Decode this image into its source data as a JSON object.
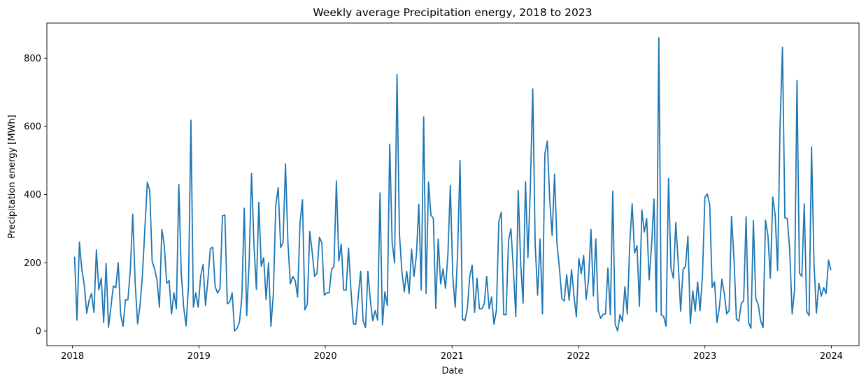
{
  "chart_data": {
    "type": "line",
    "title": "Weekly average Precipitation energy, 2018 to 2023",
    "xlabel": "Date",
    "ylabel": "Precipitation energy [MWh]",
    "xlim": [
      "2017-10-19",
      "2024-03-21"
    ],
    "ylim": [
      -43,
      903
    ],
    "grid": false,
    "color": "#1f77b4",
    "x_ticks": [
      "2018",
      "2019",
      "2020",
      "2021",
      "2022",
      "2023",
      "2024"
    ],
    "y_ticks": [
      "0",
      "200",
      "400",
      "600",
      "800"
    ],
    "series": [
      {
        "start_date": "2018-01-07",
        "frequency": "weekly",
        "values": [
          218,
          32,
          261,
          180,
          135,
          52,
          90,
          110,
          55,
          238,
          121,
          155,
          25,
          198,
          11,
          72,
          132,
          127,
          200,
          48,
          14,
          92,
          91,
          180,
          343,
          140,
          21,
          75,
          165,
          300,
          436,
          412,
          205,
          182,
          150,
          70,
          298,
          252,
          140,
          148,
          50,
          112,
          65,
          430,
          170,
          70,
          15,
          133,
          618,
          70,
          112,
          70,
          160,
          195,
          75,
          150,
          242,
          245,
          130,
          111,
          125,
          338,
          340,
          80,
          85,
          112,
          0,
          8,
          25,
          100,
          360,
          45,
          200,
          462,
          252,
          122,
          377,
          190,
          215,
          92,
          200,
          14,
          110,
          370,
          420,
          245,
          260,
          490,
          260,
          138,
          160,
          148,
          100,
          318,
          385,
          62,
          78,
          292,
          233,
          160,
          170,
          275,
          258,
          105,
          112,
          112,
          180,
          190,
          440,
          205,
          255,
          120,
          120,
          243,
          120,
          21,
          20,
          100,
          175,
          30,
          10,
          175,
          90,
          30,
          60,
          32,
          405,
          18,
          115,
          75,
          548,
          260,
          200,
          752,
          285,
          175,
          115,
          175,
          110,
          240,
          160,
          222,
          372,
          120,
          628,
          110,
          437,
          340,
          330,
          66,
          270,
          138,
          182,
          125,
          225,
          427,
          160,
          70,
          227,
          500,
          35,
          30,
          65,
          160,
          193,
          55,
          155,
          65,
          65,
          80,
          160,
          65,
          100,
          20,
          60,
          320,
          348,
          48,
          48,
          265,
          300,
          180,
          42,
          412,
          200,
          82,
          438,
          215,
          420,
          710,
          255,
          105,
          270,
          50,
          520,
          557,
          385,
          280,
          460,
          255,
          185,
          95,
          88,
          165,
          90,
          180,
          103,
          42,
          213,
          168,
          222,
          93,
          150,
          298,
          103,
          270,
          60,
          37,
          49,
          50,
          185,
          48,
          410,
          20,
          0,
          48,
          28,
          130,
          50,
          255,
          373,
          228,
          250,
          72,
          355,
          290,
          330,
          150,
          250,
          387,
          56,
          860,
          48,
          42,
          14,
          447,
          185,
          155,
          318,
          200,
          58,
          180,
          190,
          278,
          22,
          118,
          58,
          144,
          60,
          162,
          392,
          402,
          370,
          128,
          144,
          25,
          70,
          152,
          110,
          50,
          60,
          336,
          212,
          35,
          29,
          80,
          90,
          335,
          25,
          8,
          324,
          95,
          78,
          30,
          10,
          325,
          281,
          155,
          393,
          340,
          178,
          598,
          832,
          332,
          330,
          235,
          50,
          120,
          735,
          170,
          160,
          373,
          58,
          45,
          540,
          200,
          52,
          140,
          102,
          127,
          110,
          208,
          178
        ]
      }
    ]
  }
}
